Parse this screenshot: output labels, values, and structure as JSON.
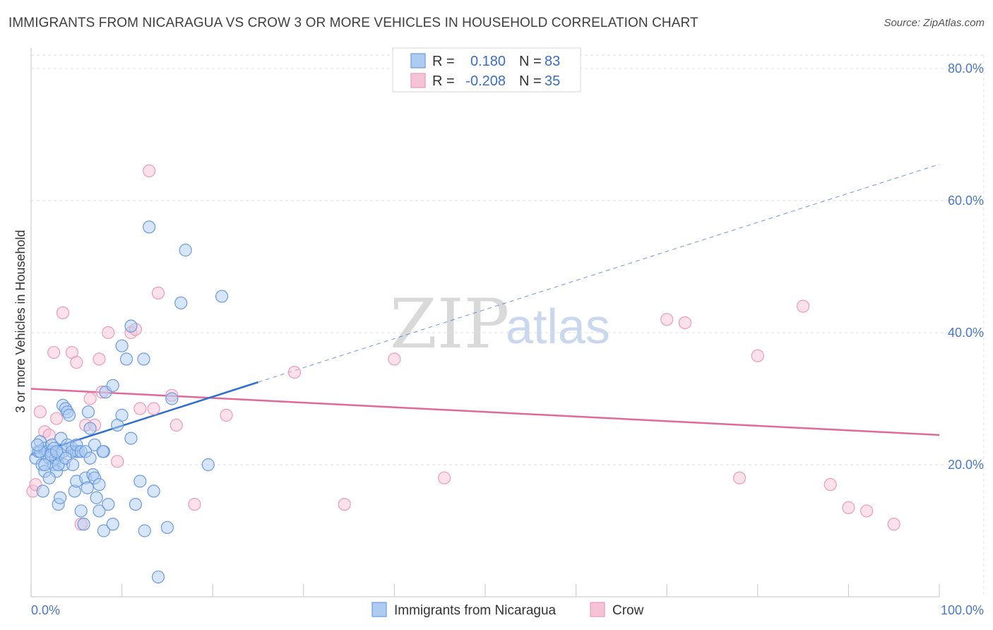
{
  "header": {
    "title": "IMMIGRANTS FROM NICARAGUA VS CROW 3 OR MORE VEHICLES IN HOUSEHOLD CORRELATION CHART",
    "source": "Source: ZipAtlas.com"
  },
  "watermark": {
    "zip": "ZIP",
    "atlas": "atlas"
  },
  "legend": {
    "rows": [
      {
        "r_label": "R =",
        "r_value": "0.180",
        "n_label": "N =",
        "n_value": "83"
      },
      {
        "r_label": "R =",
        "r_value": "-0.208",
        "n_label": "N =",
        "n_value": "35"
      }
    ]
  },
  "chart_data": {
    "type": "scatter",
    "title": "IMMIGRANTS FROM NICARAGUA VS CROW 3 OR MORE VEHICLES IN HOUSEHOLD CORRELATION CHART",
    "xlabel": "",
    "ylabel": "3 or more Vehicles in Household",
    "xlim": [
      0,
      100
    ],
    "ylim": [
      0,
      80
    ],
    "x_tick_labels": [
      "0.0%",
      "100.0%"
    ],
    "y_ticks": [
      20,
      40,
      60,
      80
    ],
    "y_tick_labels": [
      "20.0%",
      "40.0%",
      "60.0%",
      "80.0%"
    ],
    "grid": true,
    "legend_position": "top-center",
    "colors": {
      "blue": "#6a9be0",
      "blue_fill": "#aecbf2",
      "pink": "#ee9ab8",
      "pink_fill": "#f6c3d6",
      "blue_line": "#2f6fd1",
      "pink_line": "#e0699a"
    },
    "series": [
      {
        "name": "Immigrants from Nicaragua",
        "color": "#6a9be0",
        "x": [
          0.5,
          0.8,
          1.0,
          1.2,
          1.5,
          1.5,
          1.8,
          2.0,
          2.2,
          2.3,
          2.5,
          2.7,
          2.8,
          3.0,
          3.0,
          3.2,
          3.3,
          3.5,
          3.6,
          3.8,
          4.0,
          4.2,
          4.5,
          4.8,
          5.0,
          5.0,
          5.2,
          5.5,
          5.8,
          6.0,
          6.2,
          6.5,
          6.8,
          7.0,
          7.2,
          7.5,
          8.0,
          8.2,
          8.5,
          9.0,
          9.5,
          10.0,
          10.5,
          11.0,
          11.5,
          12.0,
          12.5,
          13.0,
          13.5,
          14.0,
          15.0,
          15.5,
          17.0,
          19.5,
          21.0,
          1.0,
          1.5,
          2.0,
          2.5,
          3.0,
          3.5,
          4.0,
          4.5,
          5.0,
          5.5,
          6.0,
          6.5,
          7.0,
          7.5,
          8.0,
          9.0,
          10.0,
          11.0,
          2.2,
          3.8,
          6.3,
          0.7,
          1.3,
          2.8,
          4.6,
          7.9,
          12.4,
          16.5
        ],
        "y": [
          21,
          22,
          23.5,
          20,
          19,
          22.5,
          22,
          21,
          22,
          23,
          20,
          21,
          19,
          14,
          21.5,
          15,
          24,
          29,
          20,
          28.5,
          28,
          27.5,
          22.5,
          16,
          17.5,
          22,
          22,
          13,
          11,
          18,
          16.5,
          25.5,
          18.5,
          23,
          15,
          13,
          10,
          31,
          14,
          11,
          26,
          27.5,
          36,
          24,
          14,
          17.5,
          10,
          56,
          16,
          3,
          10.5,
          30,
          52.5,
          20,
          45.5,
          22,
          20,
          18,
          22.5,
          20,
          22,
          23,
          22,
          23,
          22,
          22,
          21,
          18,
          17,
          22,
          32,
          38,
          41,
          21.5,
          21,
          28,
          23,
          16,
          22,
          20,
          22,
          36,
          44.5
        ],
        "trend": {
          "x": [
            0,
            25
          ],
          "y": [
            21.5,
            32.5
          ],
          "dashed_x": [
            25,
            100
          ],
          "dashed_y": [
            32.5,
            65.5
          ]
        }
      },
      {
        "name": "Crow",
        "color": "#ee9ab8",
        "x": [
          0.2,
          0.5,
          1.0,
          1.5,
          2.0,
          2.5,
          2.8,
          3.5,
          4.5,
          5.0,
          5.5,
          6.0,
          6.5,
          7.0,
          7.5,
          7.8,
          8.5,
          9.5,
          11.0,
          11.5,
          12.0,
          13.0,
          13.5,
          14.0,
          15.5,
          16.0,
          18.0,
          21.5,
          29.0,
          34.5,
          40.0,
          45.5,
          70.0,
          80.0,
          90.0
        ],
        "y": [
          16,
          17,
          28,
          25,
          24.5,
          37,
          27,
          43,
          37,
          35.5,
          11,
          26,
          30,
          26,
          36,
          31,
          40,
          20.5,
          40,
          40.5,
          28.5,
          64.5,
          28.5,
          46,
          30.5,
          26,
          14,
          27.5,
          34,
          14,
          36,
          18,
          42,
          36.5,
          13.5
        ],
        "extra_x": [
          78,
          88,
          92,
          95,
          72,
          85
        ],
        "extra_y": [
          18,
          17,
          13,
          11,
          41.5,
          44
        ],
        "trend": {
          "x": [
            0,
            100
          ],
          "y": [
            31.5,
            24.5
          ]
        }
      }
    ]
  }
}
